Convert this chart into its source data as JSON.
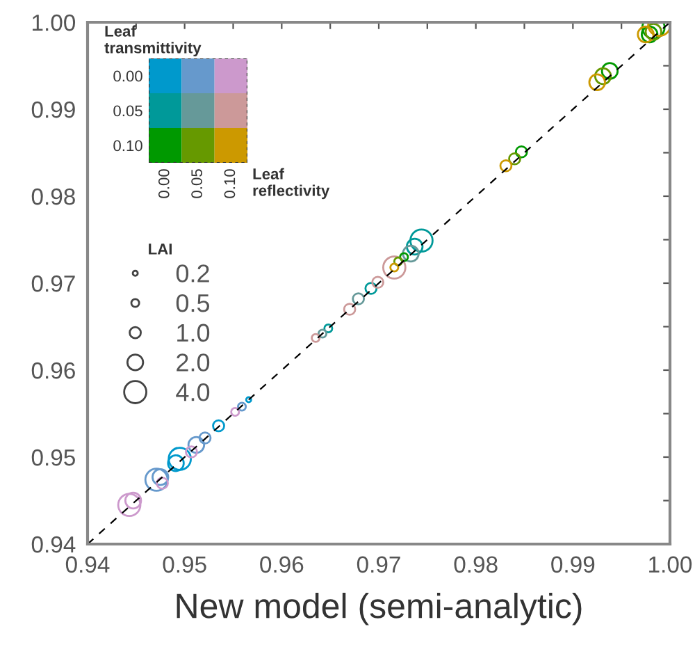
{
  "chart_data": [
    {
      "type": "bubble",
      "xlabel": "New model (semi-analytic)",
      "xlim": [
        0.94,
        1.0
      ],
      "ylim": [
        0.94,
        1.0
      ],
      "xticks": [
        0.94,
        {
          "value": 0.945,
          "label": null
        },
        0.95,
        {
          "value": 0.955,
          "label": null
        },
        0.96,
        {
          "value": 0.965,
          "label": null
        },
        0.97,
        {
          "value": 0.975,
          "label": null
        },
        0.98,
        {
          "value": 0.985,
          "label": null
        },
        0.99,
        {
          "value": 0.995,
          "label": null
        },
        {
          "value": 1.0,
          "label": "1.00"
        }
      ],
      "yticks": [
        0.94,
        {
          "value": 0.945,
          "label": null
        },
        0.95,
        {
          "value": 0.955,
          "label": null
        },
        0.96,
        {
          "value": 0.965,
          "label": null
        },
        0.97,
        {
          "value": 0.975,
          "label": null
        },
        0.98,
        {
          "value": 0.985,
          "label": null
        },
        0.99,
        {
          "value": 0.995,
          "label": null
        },
        {
          "value": 1.0,
          "label": "1.00"
        }
      ],
      "grid": false,
      "legend_title": "LAI",
      "size_legend": [
        0.2,
        0.5,
        {
          "value": 1.0,
          "label": "1.0"
        },
        {
          "value": 2.0,
          "label": "2.0"
        },
        {
          "value": 4.0,
          "label": "4.0"
        }
      ],
      "marker": "circle",
      "series": [
        {
          "type": "line",
          "color": "#000000",
          "line_style": "dashed",
          "marker": "none",
          "x": [
            0.94,
            1.0
          ],
          "values": [
            0.94,
            1.0
          ]
        },
        {
          "color": "#0099cc",
          "x": [
            0.9495,
            0.9491,
            0.9535,
            0.9566
          ],
          "values": [
            0.9498,
            0.9493,
            0.9536,
            0.9566
          ],
          "sizes": [
            4.0,
            2.0,
            1.0,
            0.2
          ]
        },
        {
          "color": "#6699cc",
          "x": [
            0.9471,
            0.9475,
            0.9512,
            0.9521,
            0.9559
          ],
          "values": [
            0.9474,
            0.9477,
            0.9514,
            0.9522,
            0.9558
          ],
          "sizes": [
            4.0,
            2.0,
            2.0,
            1.0,
            0.5
          ]
        },
        {
          "color": "#cc99cc",
          "x": [
            0.9443,
            0.9447,
            0.9477,
            0.9507,
            0.9552
          ],
          "values": [
            0.9445,
            0.945,
            0.947,
            0.9506,
            0.9552
          ],
          "sizes": [
            4.0,
            2.0,
            1.0,
            1.0,
            0.5
          ]
        },
        {
          "color": "#009999",
          "x": [
            0.9648,
            0.9692,
            0.9737,
            0.9744
          ],
          "values": [
            0.9648,
            0.9694,
            0.9742,
            0.9749
          ],
          "sizes": [
            0.5,
            1.0,
            2.0,
            4.0
          ]
        },
        {
          "color": "#669999",
          "x": [
            0.9642,
            0.9679,
            0.9733
          ],
          "values": [
            0.9642,
            0.9682,
            0.9734
          ],
          "sizes": [
            0.5,
            1.0,
            2.0
          ]
        },
        {
          "color": "#cc9999",
          "x": [
            0.9635,
            0.967,
            0.9699,
            0.9716
          ],
          "values": [
            0.9637,
            0.967,
            0.9701,
            0.9718
          ],
          "sizes": [
            0.5,
            1.0,
            1.0,
            4.0
          ]
        },
        {
          "color": "#009900",
          "x": [
            0.9726,
            0.9847,
            0.9938,
            0.9979,
            0.9983
          ],
          "values": [
            0.973,
            0.9851,
            0.9944,
            0.9986,
            0.9994
          ],
          "sizes": [
            0.5,
            1.0,
            2.0,
            2.0,
            4.0
          ]
        },
        {
          "color": "#669900",
          "x": [
            0.972,
            0.984,
            0.9931,
            0.9983
          ],
          "values": [
            0.9725,
            0.9843,
            0.9938,
            0.9989
          ],
          "sizes": [
            0.5,
            1.0,
            2.0,
            2.0
          ]
        },
        {
          "color": "#cc9900",
          "x": [
            0.9716,
            0.9831,
            0.9925,
            0.9975,
            0.9989
          ],
          "values": [
            0.9718,
            0.9835,
            0.9931,
            0.9986,
            0.9997
          ],
          "sizes": [
            0.5,
            1.0,
            2.0,
            2.0,
            4.0
          ]
        }
      ]
    },
    {
      "type": "other",
      "xlabel": "Leaf\nreflectivity",
      "ylabel": "Leaf\ntransmittivity",
      "categories": [
        "0.00",
        "0.05",
        "0.10"
      ],
      "y_categories": [
        "0.00",
        "0.05",
        "0.10"
      ],
      "colors": [
        [
          "#0099cc",
          "#6699cc",
          "#cc99cc"
        ],
        [
          "#009999",
          "#669999",
          "#cc9999"
        ],
        [
          "#009900",
          "#669900",
          "#cc9900"
        ]
      ]
    }
  ]
}
